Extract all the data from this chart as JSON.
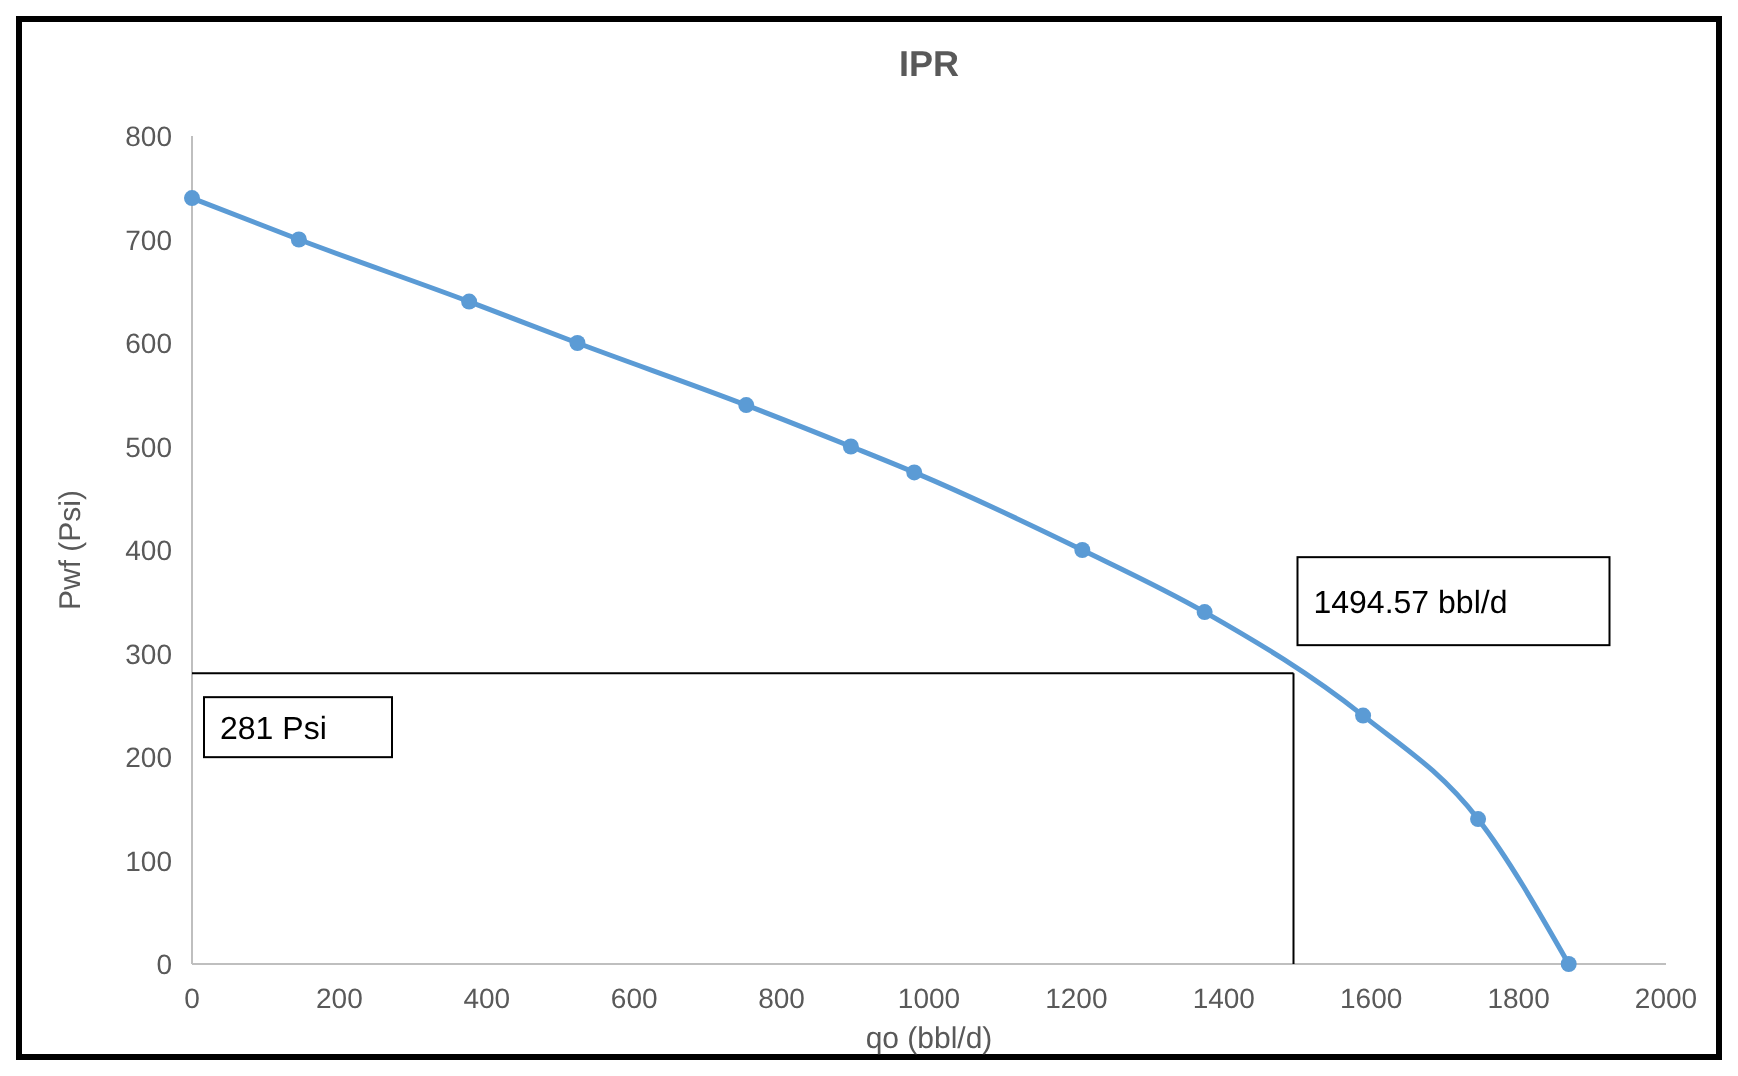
{
  "chart_data": {
    "type": "line",
    "title": "IPR",
    "xlabel": "qo (bbl/d)",
    "ylabel": "Pwf (Psi)",
    "x": [
      0,
      145,
      376,
      523,
      752,
      894,
      980,
      1208,
      1374,
      1589,
      1745,
      1868
    ],
    "series": [
      {
        "color": "#5b9bd5",
        "values": [
          740,
          700,
          640,
          600,
          540,
          500,
          475,
          400,
          340,
          240,
          140,
          0
        ]
      }
    ],
    "xlim": [
      0,
      2000
    ],
    "xticks": [
      0,
      200,
      400,
      600,
      800,
      1000,
      1200,
      1400,
      1600,
      1800,
      2000
    ],
    "ylim": [
      0,
      800
    ],
    "yticks": [
      0,
      100,
      200,
      300,
      400,
      500,
      600,
      700,
      800
    ],
    "grid": false,
    "marker": "circle",
    "line_style": "solid",
    "ref_lines": [
      {
        "axis": "y",
        "value": 281,
        "label": "281 Psi",
        "color": "#000000"
      },
      {
        "axis": "x",
        "value": 1494.57,
        "label": "1494.57 bbl/d",
        "color": "#000000"
      }
    ]
  }
}
